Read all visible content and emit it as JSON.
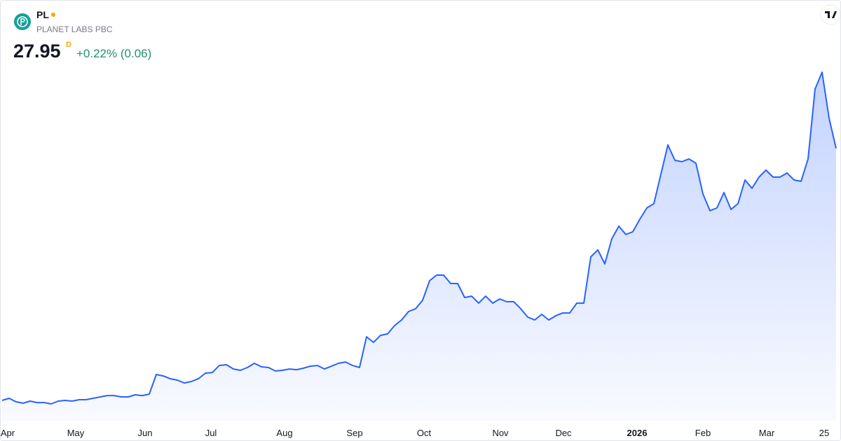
{
  "header": {
    "ticker": "PL",
    "name": "PLANET LABS PBC",
    "price": 27.95,
    "interval": "D",
    "change": "+0.22% (0.06)"
  },
  "chart_data": {
    "type": "area",
    "color": "#2962ff",
    "values": [
      3.51,
      3.71,
      3.37,
      3.24,
      3.44,
      3.3,
      3.3,
      3.17,
      3.44,
      3.51,
      3.44,
      3.58,
      3.58,
      3.71,
      3.85,
      3.98,
      3.98,
      3.85,
      3.85,
      4.05,
      3.98,
      4.12,
      6.02,
      5.88,
      5.61,
      5.48,
      5.2,
      5.34,
      5.61,
      6.15,
      6.22,
      6.9,
      6.97,
      6.56,
      6.43,
      6.7,
      7.11,
      6.77,
      6.7,
      6.36,
      6.43,
      6.56,
      6.49,
      6.63,
      6.83,
      6.9,
      6.56,
      6.83,
      7.11,
      7.24,
      6.9,
      6.7,
      9.68,
      9.14,
      9.82,
      9.96,
      10.77,
      11.31,
      12.13,
      12.4,
      13.22,
      15.12,
      15.66,
      15.66,
      14.85,
      14.85,
      13.49,
      13.62,
      12.94,
      13.62,
      12.94,
      13.35,
      13.08,
      13.08,
      12.4,
      11.59,
      11.31,
      11.86,
      11.31,
      11.72,
      11.99,
      11.99,
      12.94,
      12.94,
      17.43,
      18.11,
      16.75,
      19.19,
      20.41,
      19.6,
      19.87,
      21.09,
      22.18,
      22.59,
      25.44,
      28.29,
      26.8,
      26.66,
      26.93,
      26.52,
      23.54,
      21.91,
      22.18,
      23.67,
      22.04,
      22.59,
      24.89,
      24.08,
      25.17,
      25.85,
      25.17,
      25.17,
      25.57,
      24.89,
      24.76,
      26.93,
      33.72,
      35.35,
      30.87,
      27.95
    ],
    "xlim": [
      -0.2,
      119.8
    ],
    "ylim": [
      1.54,
      35.49
    ],
    "xticks": [
      {
        "value": 0.8,
        "label": "Apr"
      },
      {
        "value": 10.5,
        "label": "May"
      },
      {
        "value": 20.4,
        "label": "Jun"
      },
      {
        "value": 29.8,
        "label": "Jul"
      },
      {
        "value": 40.3,
        "label": "Aug"
      },
      {
        "value": 50.3,
        "label": "Sep"
      },
      {
        "value": 60.2,
        "label": "Oct"
      },
      {
        "value": 71.1,
        "label": "Nov"
      },
      {
        "value": 80.1,
        "label": "Dec"
      },
      {
        "value": 90.6,
        "label": "2026"
      },
      {
        "value": 100,
        "label": "Feb"
      },
      {
        "value": 109.1,
        "label": "Mar"
      },
      {
        "value": 117.3,
        "label": "25"
      }
    ]
  }
}
